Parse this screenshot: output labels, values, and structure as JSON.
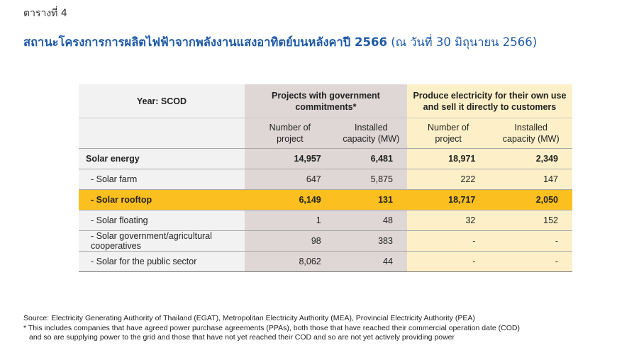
{
  "table_label": "ตารางที่ 4",
  "title": {
    "main": "สถานะโครงการการผลิตไฟฟ้าจากพลังงานแสงอาทิตย์บนหลังคาปี 2566",
    "date": "(ณ วันที่ 30 มิถุนายน 2566)"
  },
  "table": {
    "header": {
      "year": "Year: SCOD",
      "group1": "Projects with government commitments*",
      "group2": "Produce electricity for their own use and sell it directly to customers",
      "sub": {
        "num_project": "Number of project",
        "capacity": "Installed capacity (MW)"
      }
    },
    "rows": [
      {
        "name": "Solar energy",
        "v1": "14,957",
        "v2": "6,481",
        "v3": "18,971",
        "v4": "2,349"
      },
      {
        "name": "- Solar farm",
        "v1": "647",
        "v2": "5,875",
        "v3": "222",
        "v4": "147"
      },
      {
        "name": "- Solar rooftop",
        "v1": "6,149",
        "v2": "131",
        "v3": "18,717",
        "v4": "2,050"
      },
      {
        "name": "- Solar floating",
        "v1": "1",
        "v2": "48",
        "v3": "32",
        "v4": "152"
      },
      {
        "name": "- Solar government/agricultural cooperatives",
        "v1": "98",
        "v2": "383",
        "v3": "-",
        "v4": "-"
      },
      {
        "name": "- Solar for the public sector",
        "v1": "8,062",
        "v2": "44",
        "v3": "-",
        "v4": "-"
      }
    ]
  },
  "notes": {
    "source": "Source: Electricity Generating Authority of Thailand (EGAT), Metropolitan Electricity Authority (MEA), Provincial Electricity Authority (PEA)",
    "footnote1": "* This includes companies that have agreed power purchase agreements (PPAs), both those that have reached their commercial operation date (COD)",
    "footnote2": "and so are supplying power to the grid and those that have not yet reached their COD and so are not yet actively providing power"
  },
  "colors": {
    "title": "#1f5aa6",
    "highlight": "#fbbf1f",
    "group1_bg": "#dfd6d6",
    "group2_bg": "#fdf0c8",
    "year_bg": "#f2f2f2"
  }
}
